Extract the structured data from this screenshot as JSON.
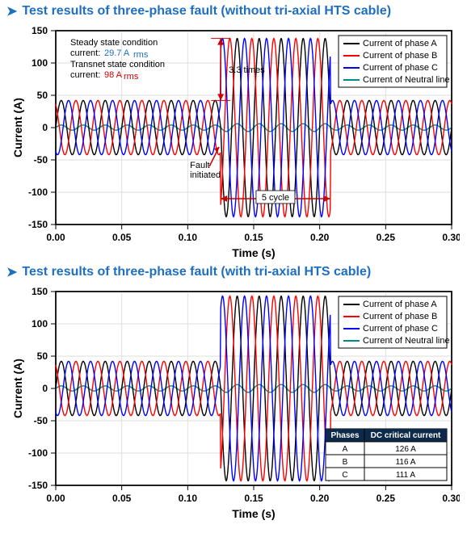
{
  "titles": {
    "top": "Test results of three-phase fault (without tri-axial HTS cable)",
    "bottom": "Test results of three-phase fault (with tri-axial HTS cable)"
  },
  "chart_common": {
    "type": "line",
    "xlabel": "Time (s)",
    "ylabel": "Current (A)",
    "xlim": [
      0.0,
      0.3
    ],
    "ylim": [
      -150,
      150
    ],
    "xtick_step": 0.05,
    "ytick_step": 50,
    "xticks": [
      "0.00",
      "0.05",
      "0.10",
      "0.15",
      "0.20",
      "0.25",
      "0.30"
    ],
    "yticks": [
      "-150",
      "-100",
      "-50",
      "0",
      "50",
      "100",
      "150"
    ],
    "grid_color": "#dedede",
    "background_color": "#ffffff",
    "axis_color": "#000000",
    "label_fontsize": 14,
    "tick_fontsize": 12,
    "frequency_hz": 60,
    "steady_amp": 42,
    "fault_amp": 138,
    "fault_start": 0.125,
    "fault_end": 0.208,
    "neutral_amp_steady": 4,
    "neutral_amp_fault": 6,
    "phase_shift_deg": [
      0,
      120,
      240
    ],
    "series": [
      {
        "name": "Current of phase A",
        "color": "#000000"
      },
      {
        "name": "Current of phase B",
        "color": "#ff0000"
      },
      {
        "name": "Current of phase C",
        "color": "#0000ff"
      },
      {
        "name": "Current of Neutral line",
        "color": "#008b8b"
      }
    ],
    "line_width": 1.4,
    "bottom_fault_amp": 143
  },
  "legend": {
    "items": [
      "Current of phase A",
      "Current of phase B",
      "Current of phase C",
      "Current of Neutral line"
    ]
  },
  "top_annotations": {
    "cond_line1": "Steady state condition",
    "cond_line1b": "current:",
    "cond_val1": "29.7 A",
    "rms1": "rms",
    "cond_line2": "Transnet state condition",
    "cond_line2b": "current:",
    "cond_val2": "98 A",
    "rms2": "rms",
    "ratio": "3.3 times",
    "fault_lbl1": "Fault",
    "fault_lbl2": "initiated",
    "cycles": "5 cycle"
  },
  "table": {
    "header": [
      "Phases",
      "DC critical current"
    ],
    "rows": [
      [
        "A",
        "126 A"
      ],
      [
        "B",
        "116 A"
      ],
      [
        "C",
        "111 A"
      ]
    ]
  }
}
